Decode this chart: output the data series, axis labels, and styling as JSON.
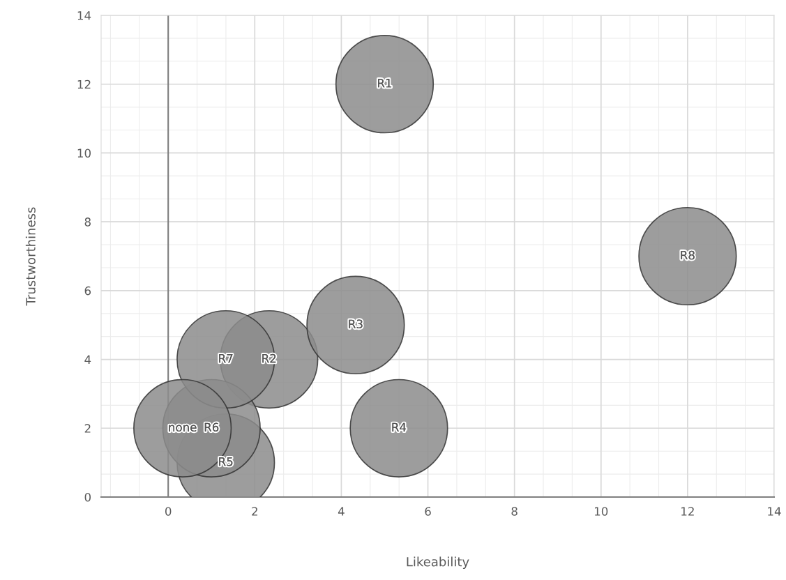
{
  "chart_data": {
    "type": "bubble",
    "xlabel": "Likeability",
    "ylabel": "Trustworthiness",
    "x": [
      5,
      2.33,
      4.33,
      5.33,
      1.33,
      1,
      1.33,
      12,
      0.33
    ],
    "values": [
      12,
      4,
      5,
      2,
      1,
      2,
      4,
      7,
      2
    ],
    "sizes": [
      1,
      1,
      1,
      1,
      1,
      1,
      1,
      1,
      1
    ],
    "value_labels": [
      "R1",
      "R2",
      "R3",
      "R4",
      "R5",
      "R6",
      "R7",
      "R8",
      "none"
    ],
    "color": "#8c8c8c",
    "xlim": [
      -1.55,
      14
    ],
    "xticks": [
      0,
      2,
      4,
      6,
      8,
      10,
      12,
      14
    ],
    "ylim": [
      0,
      14
    ],
    "yticks": [
      0,
      2,
      4,
      6,
      8,
      10,
      12,
      14
    ],
    "grid": true
  }
}
